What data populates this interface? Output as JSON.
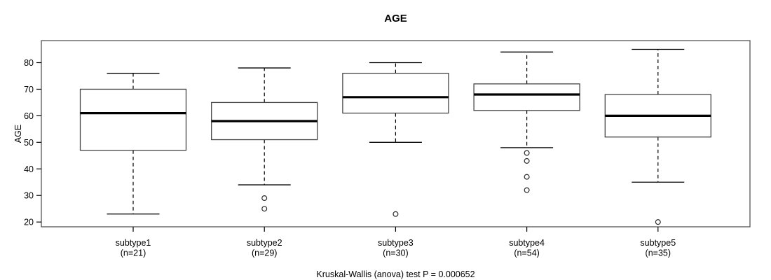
{
  "chart_data": {
    "type": "boxplot",
    "title": "AGE",
    "ylabel": "AGE",
    "xlabel": "",
    "footer": "Kruskal-Wallis (anova) test P = 0.000652",
    "grid": false,
    "legend_position": "none",
    "y_axis": {
      "ticks": [
        20,
        30,
        40,
        50,
        60,
        70,
        80
      ],
      "range": [
        18.2,
        88.3
      ]
    },
    "groups": [
      {
        "label": "subtype1",
        "n_label": "(n=21)",
        "n": 21,
        "whisker_low": 23,
        "q1": 47,
        "median": 61,
        "q3": 70,
        "whisker_high": 76,
        "outliers": []
      },
      {
        "label": "subtype2",
        "n_label": "(n=29)",
        "n": 29,
        "whisker_low": 34,
        "q1": 51,
        "median": 58,
        "q3": 65,
        "whisker_high": 78,
        "outliers": [
          29,
          25
        ]
      },
      {
        "label": "subtype3",
        "n_label": "(n=30)",
        "n": 30,
        "whisker_low": 50,
        "q1": 61,
        "median": 67,
        "q3": 76,
        "whisker_high": 80,
        "outliers": [
          23
        ]
      },
      {
        "label": "subtype4",
        "n_label": "(n=54)",
        "n": 54,
        "whisker_low": 48,
        "q1": 62,
        "median": 68,
        "q3": 72,
        "whisker_high": 84,
        "outliers": [
          46,
          43,
          37,
          32
        ]
      },
      {
        "label": "subtype5",
        "n_label": "(n=35)",
        "n": 35,
        "whisker_low": 35,
        "q1": 52,
        "median": 60,
        "q3": 68,
        "whisker_high": 85,
        "outliers": [
          20
        ]
      }
    ],
    "colors": {
      "frame": "#555555",
      "box_border": "#454545",
      "box_fill": "#ffffff",
      "median": "#000000",
      "whisker": "#000000",
      "outlier": "#2b2b2b",
      "text": "#000000",
      "background": "#ffffff"
    }
  }
}
